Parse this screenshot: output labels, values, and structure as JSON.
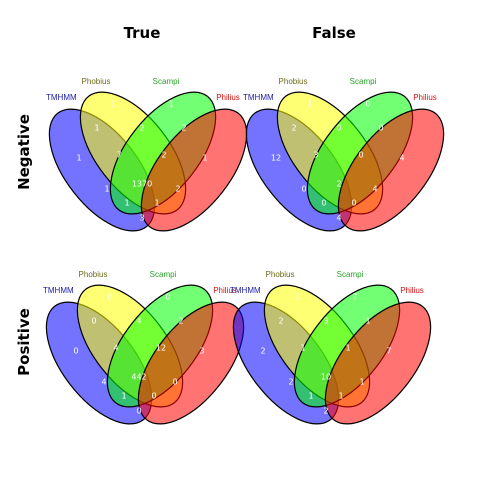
{
  "columns": [
    "True",
    "False"
  ],
  "rows": [
    "Negative",
    "Positive"
  ],
  "set_names": [
    "TMHMM",
    "Phobius",
    "Scampi",
    "Philius"
  ],
  "set_colors": {
    "TMHMM": "#0000ff",
    "Phobius": "#ffff00",
    "Scampi": "#00ff00",
    "Philius": "#ff0000"
  },
  "label_colors": {
    "TMHMM": "#1a1aa6",
    "Phobius": "#6b6b1a",
    "Scampi": "#2aa02a",
    "Philius": "#d01010"
  },
  "panels": [
    {
      "row": "Negative",
      "column": "True",
      "counts": {
        "A": "1",
        "B": "1",
        "C": "1",
        "D": "1",
        "AB": "1",
        "BC": "2",
        "CD": "2",
        "ABC": "7",
        "BCD": "2",
        "ABCD": "1370",
        "AD": "3",
        "ABD": "1",
        "ACD": "1",
        "AC": "1",
        "BD": "2"
      }
    },
    {
      "row": "Negative",
      "column": "False",
      "counts": {
        "A": "12",
        "B": "1",
        "C": "0",
        "D": "4",
        "AB": "2",
        "BC": "0",
        "CD": "0",
        "ABC": "3",
        "BCD": "0",
        "ABCD": "2",
        "AD": "4",
        "ABD": "0",
        "ACD": "0",
        "AC": "0",
        "BD": "4"
      }
    },
    {
      "row": "Positive",
      "column": "True",
      "counts": {
        "A": "0",
        "B": "0",
        "C": "0",
        "D": "3",
        "AB": "0",
        "BC": "4",
        "CD": "2",
        "ABC": "4",
        "BCD": "12",
        "ABCD": "442",
        "AD": "0",
        "ABD": "1",
        "ACD": "0",
        "AC": "4",
        "BD": "0"
      }
    },
    {
      "row": "Positive",
      "column": "False",
      "counts": {
        "A": "2",
        "B": "1",
        "C": "7",
        "D": "7",
        "AB": "2",
        "BC": "3",
        "CD": "1",
        "ABC": "1",
        "BCD": "1",
        "ABCD": "10",
        "AD": "2",
        "ABD": "1",
        "ACD": "1",
        "AC": "2",
        "BD": "1"
      }
    }
  ]
}
